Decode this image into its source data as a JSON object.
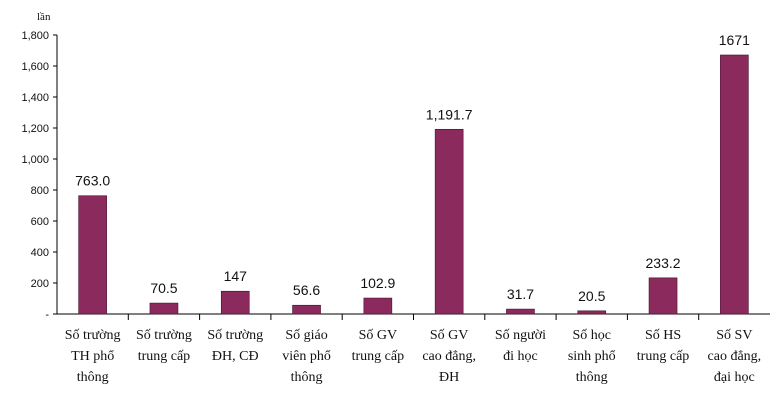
{
  "chart_data": {
    "type": "bar",
    "unit_label": "lần",
    "categories": [
      [
        "Số trường",
        "TH phổ",
        "thông"
      ],
      [
        "Số trường",
        "trung cấp"
      ],
      [
        "Số trường",
        "ĐH, CĐ"
      ],
      [
        "Số giáo",
        "viên phổ",
        "thông"
      ],
      [
        "Số GV",
        "trung cấp"
      ],
      [
        "Số GV",
        "cao đẳng,",
        "ĐH"
      ],
      [
        "Số người",
        "đi học"
      ],
      [
        "Số học",
        "sinh phổ",
        "thông"
      ],
      [
        "Số HS",
        "trung cấp"
      ],
      [
        "Số SV",
        "cao đẳng,",
        "đại học"
      ]
    ],
    "values": [
      763.0,
      70.5,
      147,
      56.6,
      102.9,
      1191.7,
      31.7,
      20.5,
      233.2,
      1671
    ],
    "data_labels": [
      "763.0",
      "70.5",
      "147",
      "56.6",
      "102.9",
      "1,191.7",
      "31.7",
      "20.5",
      "233.2",
      "1671"
    ],
    "y_ticks": [
      0,
      200,
      400,
      600,
      800,
      1000,
      1200,
      1400,
      1600,
      1800
    ],
    "y_tick_labels": [
      "-",
      "200",
      "400",
      "600",
      "800",
      "1,000",
      "1,200",
      "1,400",
      "1,600",
      "1,800"
    ],
    "ylim": [
      0,
      1800
    ],
    "bar_color": "#8b2a5c",
    "bar_edge_color": "#4a1030",
    "grid": false,
    "legend": "none"
  }
}
